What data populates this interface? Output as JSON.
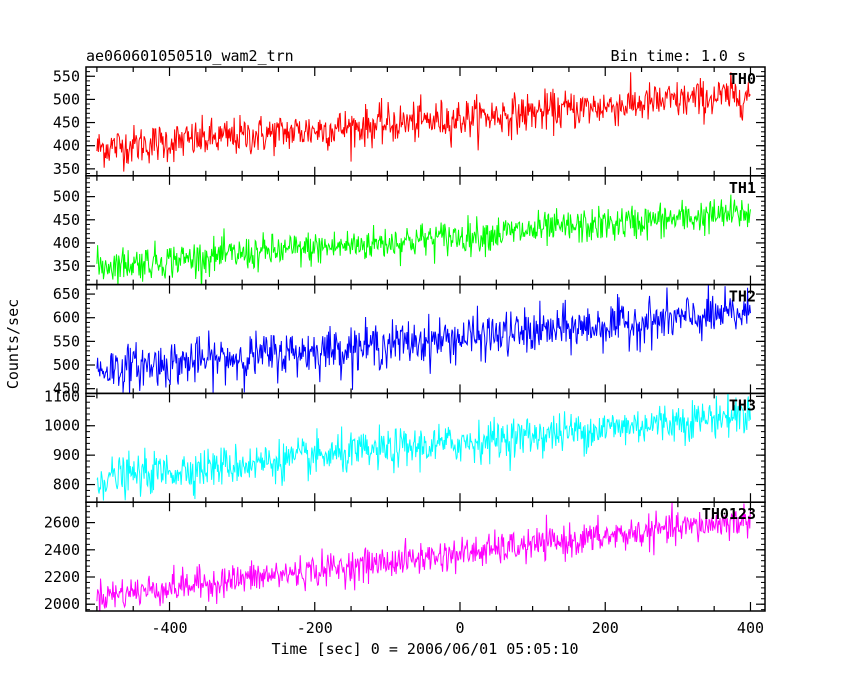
{
  "chart_data": {
    "type": "line",
    "title": "ae060601050510_wam2_trn",
    "bin_time": "Bin time: 1.0 s",
    "xlabel": "Time [sec] 0 = 2006/06/01 05:05:10",
    "ylabel": "Counts/sec",
    "xlim": [
      -515,
      420
    ],
    "xticks": [
      -400,
      -200,
      0,
      200,
      400
    ],
    "panels": [
      {
        "name": "TH0",
        "color": "#ff0000",
        "ylim": [
          335,
          570
        ],
        "yticks": [
          350,
          400,
          450,
          500,
          550
        ],
        "trend_start": 395,
        "trend_end": 510,
        "noise": 25
      },
      {
        "name": "TH1",
        "color": "#00ff00",
        "ylim": [
          310,
          545
        ],
        "yticks": [
          350,
          400,
          450,
          500
        ],
        "trend_start": 350,
        "trend_end": 465,
        "noise": 22
      },
      {
        "name": "TH2",
        "color": "#0000ff",
        "ylim": [
          440,
          670
        ],
        "yticks": [
          450,
          500,
          550,
          600,
          650
        ],
        "trend_start": 490,
        "trend_end": 610,
        "noise": 28
      },
      {
        "name": "TH3",
        "color": "#00ffff",
        "ylim": [
          740,
          1110
        ],
        "yticks": [
          800,
          900,
          1000,
          1100
        ],
        "trend_start": 820,
        "trend_end": 1040,
        "noise": 40
      },
      {
        "name": "TH0123",
        "color": "#ff00ff",
        "ylim": [
          1950,
          2750
        ],
        "yticks": [
          2000,
          2200,
          2400,
          2600
        ],
        "trend_start": 2060,
        "trend_end": 2620,
        "noise": 70
      }
    ],
    "grid": false,
    "legend": "top-right label per panel"
  }
}
